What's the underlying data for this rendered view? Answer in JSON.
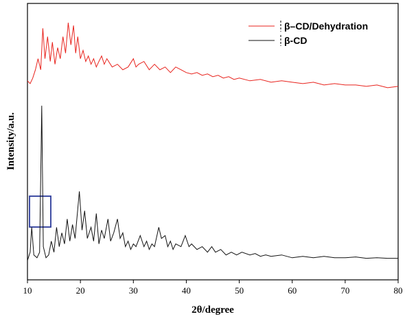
{
  "chart_data": {
    "type": "line",
    "x_label": "2θ/degree",
    "y_label": "Intensity/a.u.",
    "xlim": [
      10,
      80
    ],
    "xticks": [
      10,
      20,
      30,
      40,
      50,
      60,
      70,
      80
    ],
    "ylim": [
      0,
      100
    ],
    "legend": "upper right",
    "series": [
      {
        "name": "β–CD/Dehydration",
        "color": "#e8221c",
        "x": [
          10,
          10.5,
          11,
          11.5,
          12,
          12.5,
          12.9,
          13.3,
          13.8,
          14.3,
          14.7,
          15.2,
          15.7,
          16.2,
          16.7,
          17.2,
          17.7,
          18.2,
          18.7,
          19.1,
          19.5,
          20,
          20.5,
          21,
          21.5,
          22,
          22.5,
          23,
          23.5,
          24,
          24.5,
          25,
          26,
          27,
          28,
          29,
          30,
          30.5,
          31,
          32,
          33,
          34,
          35,
          36,
          37,
          38,
          39,
          40,
          41,
          42,
          43,
          44,
          45,
          46,
          47,
          48,
          49,
          50,
          52,
          54,
          56,
          58,
          60,
          62,
          64,
          66,
          68,
          70,
          72,
          74,
          76,
          78,
          80
        ],
        "values": [
          72,
          71,
          73,
          76,
          80,
          76,
          91,
          80,
          88,
          79,
          86,
          78,
          84,
          80,
          88,
          82,
          93,
          85,
          92,
          82,
          88,
          80,
          83,
          79,
          81,
          78,
          80,
          77,
          79,
          81,
          78,
          80,
          77,
          78,
          76,
          77,
          80,
          77,
          78,
          79,
          76,
          78,
          76,
          77,
          75,
          77,
          76,
          75,
          74.5,
          75,
          74,
          74.5,
          73.5,
          74,
          73,
          73.5,
          72.5,
          73,
          72,
          72.5,
          71.5,
          72,
          71.5,
          71,
          71.5,
          70.5,
          71,
          70.5,
          70.5,
          70,
          70.5,
          69.5,
          70
        ]
      },
      {
        "name": "β-CD",
        "color": "#111111",
        "x": [
          10,
          10.5,
          10.8,
          11.2,
          11.8,
          12.3,
          12.7,
          13,
          13.5,
          14,
          14.5,
          15,
          15.5,
          16,
          16.5,
          17,
          17.5,
          18,
          18.5,
          19,
          19.8,
          20.3,
          20.8,
          21.3,
          22,
          22.5,
          23,
          23.5,
          24,
          24.5,
          25.2,
          25.7,
          26.3,
          27,
          27.5,
          28,
          28.5,
          29,
          29.5,
          30,
          30.5,
          31.3,
          32,
          32.5,
          33,
          33.5,
          34,
          34.8,
          35.3,
          36,
          36.5,
          37,
          37.5,
          38,
          39,
          39.8,
          40.5,
          41,
          42,
          43,
          44,
          44.8,
          45.5,
          46.5,
          47.5,
          48.5,
          49.5,
          50.5,
          52,
          53,
          54,
          55,
          56,
          58,
          60,
          62,
          64,
          66,
          68,
          70,
          72,
          74,
          76,
          78,
          80
        ],
        "values": [
          7,
          10,
          19,
          9,
          8,
          10,
          63,
          12,
          8,
          9,
          14,
          10,
          19,
          12,
          17,
          13,
          22,
          14,
          20,
          15,
          32,
          18,
          25,
          15,
          19,
          14,
          24,
          13,
          18,
          15,
          22,
          14,
          17,
          22,
          15,
          17,
          12,
          14,
          11,
          13,
          12,
          16,
          12,
          14,
          11,
          13,
          12,
          19,
          15,
          16,
          12,
          14,
          11,
          13,
          12,
          16,
          12,
          13,
          11,
          12,
          10,
          12,
          10,
          11,
          9,
          10,
          9,
          10,
          9,
          9.5,
          8.5,
          9,
          8.5,
          9,
          8,
          8.5,
          8,
          8.5,
          8,
          8,
          8.3,
          7.8,
          8,
          7.8,
          7.8
        ]
      }
    ]
  }
}
